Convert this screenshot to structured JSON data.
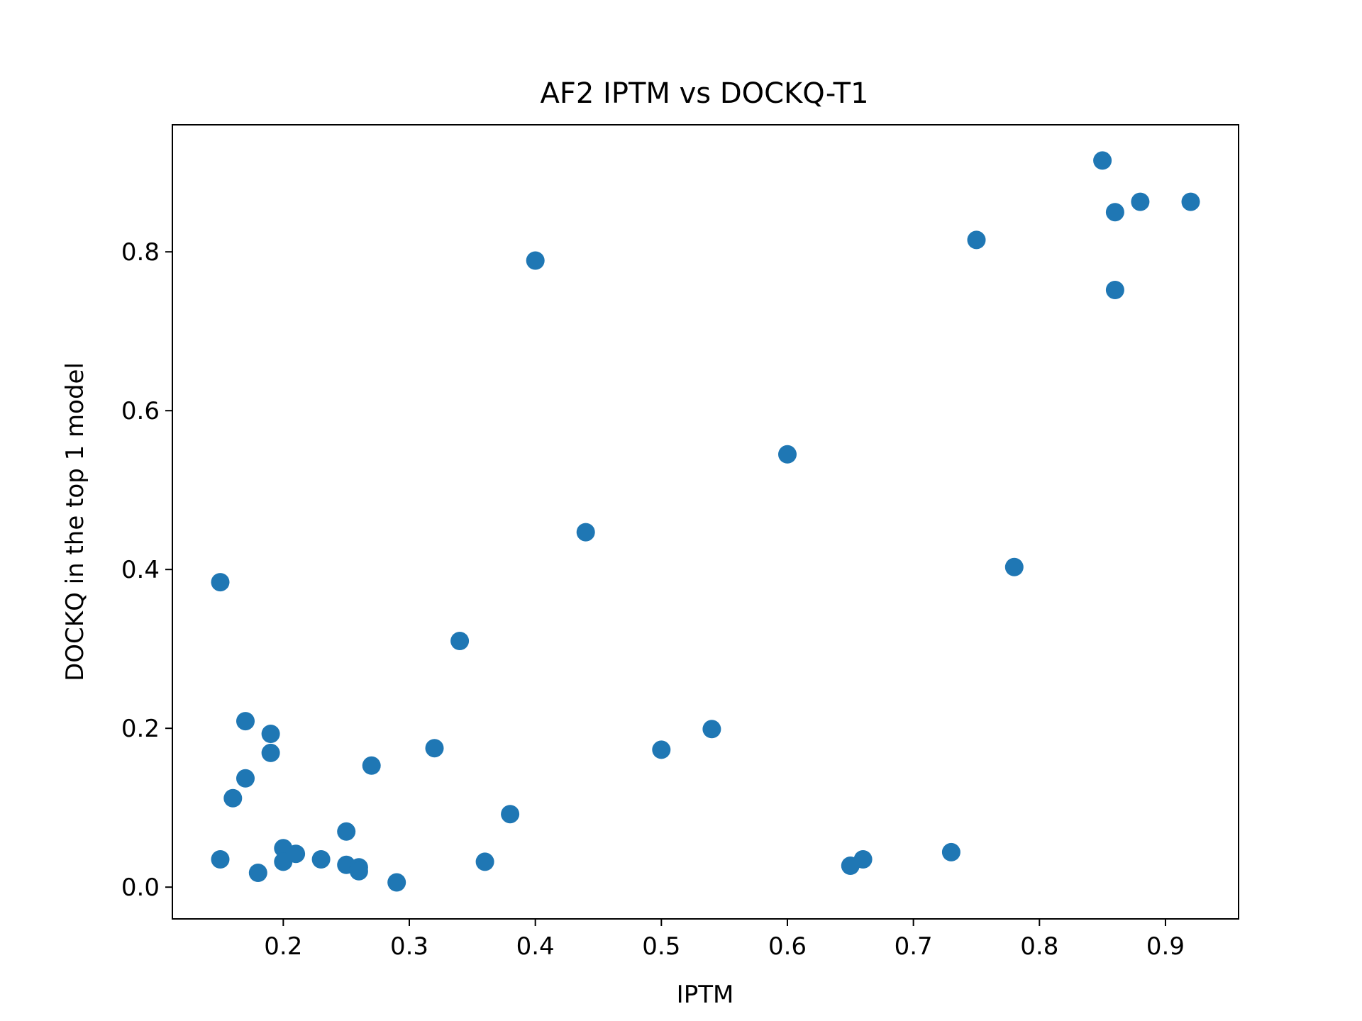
{
  "chart_data": {
    "type": "scatter",
    "title": "AF2 IPTM vs DOCKQ-T1",
    "xlabel": "IPTM",
    "ylabel": "DOCKQ in the top 1 model",
    "xlim": [
      0.112,
      0.958
    ],
    "ylim": [
      -0.04,
      0.96
    ],
    "x_ticks": [
      0.2,
      0.3,
      0.4,
      0.5,
      0.6,
      0.7,
      0.8,
      0.9
    ],
    "x_tick_labels": [
      "0.2",
      "0.3",
      "0.4",
      "0.5",
      "0.6",
      "0.7",
      "0.8",
      "0.9"
    ],
    "y_ticks": [
      0.0,
      0.2,
      0.4,
      0.6,
      0.8
    ],
    "y_tick_labels": [
      "0.0",
      "0.2",
      "0.4",
      "0.6",
      "0.8"
    ],
    "grid": false,
    "marker_color": "#1f77b4",
    "series": [
      {
        "points": [
          {
            "x": 0.85,
            "y": 0.915
          },
          {
            "x": 0.88,
            "y": 0.863
          },
          {
            "x": 0.92,
            "y": 0.863
          },
          {
            "x": 0.86,
            "y": 0.85
          },
          {
            "x": 0.86,
            "y": 0.752
          },
          {
            "x": 0.75,
            "y": 0.815
          },
          {
            "x": 0.4,
            "y": 0.789
          },
          {
            "x": 0.6,
            "y": 0.545
          },
          {
            "x": 0.44,
            "y": 0.447
          },
          {
            "x": 0.78,
            "y": 0.403
          },
          {
            "x": 0.15,
            "y": 0.384
          },
          {
            "x": 0.34,
            "y": 0.31
          },
          {
            "x": 0.17,
            "y": 0.209
          },
          {
            "x": 0.19,
            "y": 0.193
          },
          {
            "x": 0.54,
            "y": 0.199
          },
          {
            "x": 0.32,
            "y": 0.175
          },
          {
            "x": 0.5,
            "y": 0.173
          },
          {
            "x": 0.19,
            "y": 0.169
          },
          {
            "x": 0.27,
            "y": 0.153
          },
          {
            "x": 0.17,
            "y": 0.137
          },
          {
            "x": 0.16,
            "y": 0.112
          },
          {
            "x": 0.38,
            "y": 0.092
          },
          {
            "x": 0.25,
            "y": 0.07
          },
          {
            "x": 0.2,
            "y": 0.049
          },
          {
            "x": 0.21,
            "y": 0.042
          },
          {
            "x": 0.73,
            "y": 0.044
          },
          {
            "x": 0.15,
            "y": 0.035
          },
          {
            "x": 0.23,
            "y": 0.035
          },
          {
            "x": 0.66,
            "y": 0.035
          },
          {
            "x": 0.2,
            "y": 0.032
          },
          {
            "x": 0.36,
            "y": 0.032
          },
          {
            "x": 0.25,
            "y": 0.028
          },
          {
            "x": 0.65,
            "y": 0.027
          },
          {
            "x": 0.26,
            "y": 0.025
          },
          {
            "x": 0.26,
            "y": 0.02
          },
          {
            "x": 0.18,
            "y": 0.018
          },
          {
            "x": 0.29,
            "y": 0.006
          }
        ]
      }
    ]
  }
}
